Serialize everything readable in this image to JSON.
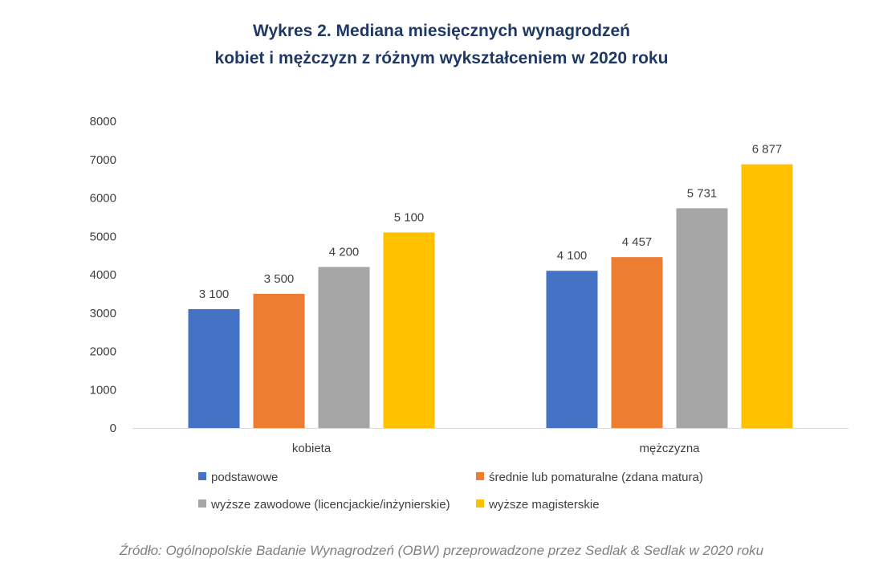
{
  "chart_data": {
    "type": "bar",
    "title_line1": "Wykres 2. Mediana miesięcznych wynagrodzeń",
    "title_line2": "kobiet i mężczyzn z różnym wykształceniem w 2020 roku",
    "categories": [
      "kobieta",
      "mężczyzna"
    ],
    "series": [
      {
        "name": "podstawowe",
        "color": "#4472c4",
        "values": [
          3100,
          4100
        ],
        "labels": [
          "3 100",
          "4 100"
        ]
      },
      {
        "name": "średnie lub pomaturalne (zdana matura)",
        "color": "#ed7d31",
        "values": [
          3500,
          4457
        ],
        "labels": [
          "3 500",
          "4 457"
        ]
      },
      {
        "name": "wyższe zawodowe (licencjackie/inżynierskie)",
        "color": "#a5a5a5",
        "values": [
          4200,
          5731
        ],
        "labels": [
          "4 200",
          "5 731"
        ]
      },
      {
        "name": "wyższe magisterskie",
        "color": "#ffc000",
        "values": [
          5100,
          6877
        ],
        "labels": [
          "5 100",
          "6 877"
        ]
      }
    ],
    "yticks": [
      "0",
      "1000",
      "2000",
      "3000",
      "4000",
      "5000",
      "6000",
      "7000",
      "8000"
    ],
    "ylim": [
      0,
      8000
    ],
    "legend_position": "bottom",
    "source": "Źródło: Ogólnopolskie Badanie Wynagrodzeń (OBW) przeprowadzone przez Sedlak & Sedlak w 2020  roku"
  }
}
